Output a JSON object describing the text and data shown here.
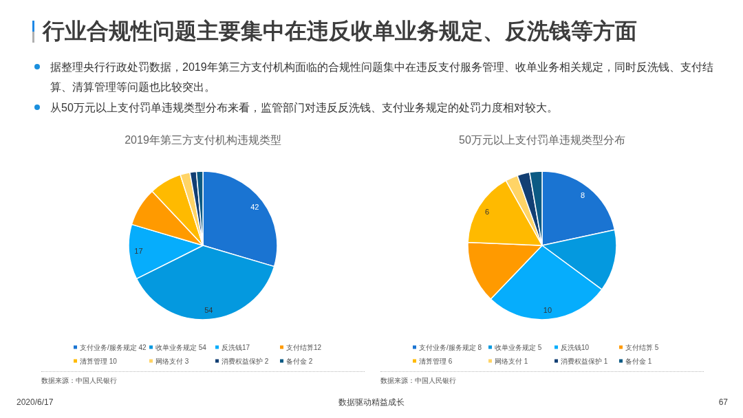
{
  "chart_data": [
    {
      "type": "other",
      "title": "行业合规性问题主要集中在违反收单业务规定、反洗钱等方面",
      "annotations": [
        "据整理央行行政处罚数据，2019年第三方支付机构面临的合规性问题集中在违反支付服务管理、收单业务相关规定，同时反洗钱、支付结算、清算管理等问题也比较突出。",
        "从50万元以上支付罚单违规类型分布来看，监管部门对违反反洗钱、支付业务规定的处罚力度相对较大。"
      ]
    },
    {
      "type": "pie",
      "title": "2019年第三方支付机构违规类型",
      "categories": [
        "支付业务/服务规定 42",
        "收单业务规定 54",
        "反洗钱17",
        "支付结算12",
        "清算管理 10",
        "网络支付 3",
        "消费权益保护 2",
        "备付金 2"
      ],
      "values": [
        42,
        54,
        17,
        12,
        10,
        3,
        2,
        2
      ],
      "colors": [
        "#1a74d2",
        "#0499df",
        "#06adfc",
        "#ff9a00",
        "#ffba00",
        "#ffd466",
        "#123f73",
        "#0b5a84"
      ],
      "value_labels": [
        "42",
        "54",
        "17",
        null,
        null,
        null,
        null,
        null
      ],
      "legend": "bottom",
      "annotations": [
        "数据来源：中国人民银行"
      ]
    },
    {
      "type": "pie",
      "title": "50万元以上支付罚单违规类型分布",
      "categories": [
        "支付业务/服务规定 8",
        "收单业务规定 5",
        "反洗钱10",
        "支付结算 5",
        "清算管理 6",
        "网络支付 1",
        "消费权益保护 1",
        "备付金 1"
      ],
      "values": [
        8,
        5,
        10,
        5,
        6,
        1,
        1,
        1
      ],
      "colors": [
        "#1a74d2",
        "#0499df",
        "#06adfc",
        "#ff9a00",
        "#ffba00",
        "#ffd466",
        "#123f73",
        "#0b5a84"
      ],
      "value_labels": [
        "8",
        null,
        "10",
        null,
        "6",
        null,
        null,
        null
      ],
      "legend": "bottom",
      "annotations": [
        "数据来源：中国人民银行"
      ]
    },
    {
      "type": "other",
      "annotations": [
        "2020/6/17",
        "数据驱动精益成长",
        "67"
      ]
    }
  ]
}
